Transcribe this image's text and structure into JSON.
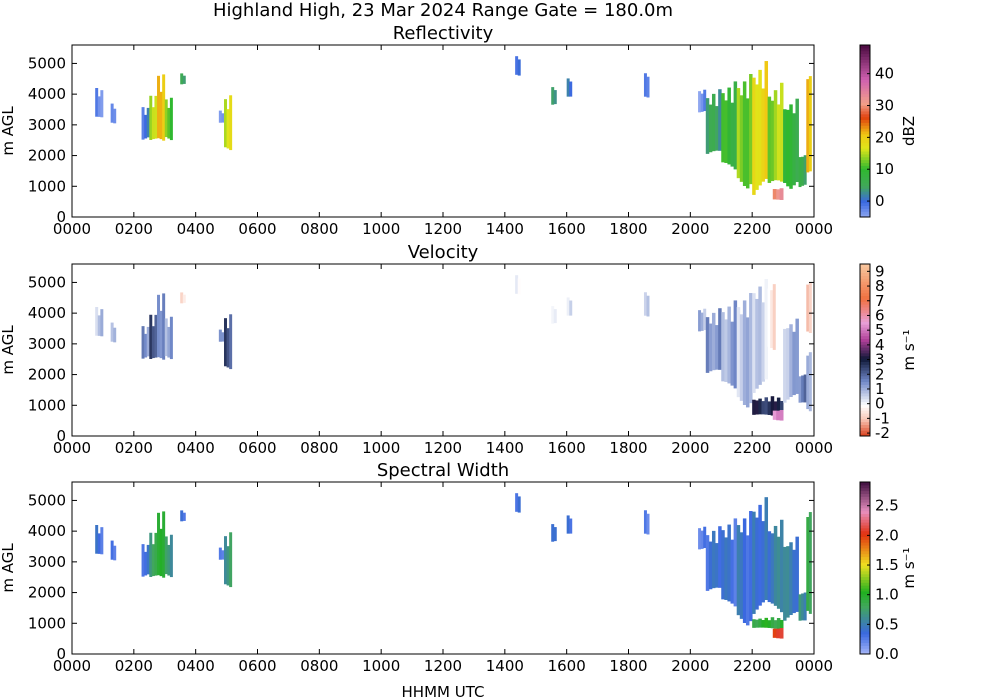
{
  "figure": {
    "suptitle": "Highland High, 23 Mar 2024 Range Gate = 180.0m",
    "xlabel": "HHMM UTC"
  },
  "chart_data": [
    {
      "type": "heatmap",
      "title": "Reflectivity",
      "ylabel": "m AGL",
      "xlim_hours": [
        0,
        24
      ],
      "ylim": [
        0,
        5600
      ],
      "x_ticks": [
        "0000",
        "0200",
        "0400",
        "0600",
        "0800",
        "1000",
        "1200",
        "1400",
        "1600",
        "1800",
        "2000",
        "2200",
        "0000"
      ],
      "y_ticks": [
        "0",
        "1000",
        "2000",
        "3000",
        "4000",
        "5000"
      ],
      "colorbar": {
        "label": "dBZ",
        "range": [
          -5,
          49
        ],
        "ticks": [
          "0",
          "10",
          "20",
          "30",
          "40"
        ],
        "tick_values": [
          0,
          10,
          20,
          30,
          40
        ]
      },
      "echoes": [
        {
          "start": "0045",
          "end": "0100",
          "base_m": 3100,
          "top_m": 4200,
          "value": -2
        },
        {
          "start": "0115",
          "end": "0125",
          "base_m": 3000,
          "top_m": 3700,
          "value": -1
        },
        {
          "start": "0215",
          "end": "0230",
          "base_m": 2500,
          "top_m": 3600,
          "value": 0
        },
        {
          "start": "0230",
          "end": "0245",
          "base_m": 2300,
          "top_m": 4000,
          "value": 14
        },
        {
          "start": "0245",
          "end": "0300",
          "base_m": 2200,
          "top_m": 4700,
          "value": 20
        },
        {
          "start": "0300",
          "end": "0315",
          "base_m": 2500,
          "top_m": 3900,
          "value": 12
        },
        {
          "start": "0330",
          "end": "0340",
          "base_m": 4300,
          "top_m": 4700,
          "value": 6
        },
        {
          "start": "0445",
          "end": "0455",
          "base_m": 3000,
          "top_m": 3500,
          "value": -2
        },
        {
          "start": "0455",
          "end": "0510",
          "base_m": 2000,
          "top_m": 4000,
          "value": 16
        },
        {
          "start": "1420",
          "end": "1430",
          "base_m": 4600,
          "top_m": 5300,
          "value": -2
        },
        {
          "start": "1530",
          "end": "1540",
          "base_m": 3600,
          "top_m": 4300,
          "value": 2
        },
        {
          "start": "1600",
          "end": "1610",
          "base_m": 3800,
          "top_m": 4600,
          "value": 1
        },
        {
          "start": "1830",
          "end": "1840",
          "base_m": 3800,
          "top_m": 4800,
          "value": 0
        },
        {
          "start": "2015",
          "end": "2030",
          "base_m": 3400,
          "top_m": 4200,
          "value": -3
        },
        {
          "start": "2030",
          "end": "2100",
          "base_m": 1800,
          "top_m": 4200,
          "value": 4
        },
        {
          "start": "2100",
          "end": "2130",
          "base_m": 1300,
          "top_m": 4500,
          "value": 9
        },
        {
          "start": "2130",
          "end": "2200",
          "base_m": 900,
          "top_m": 4800,
          "value": 13
        },
        {
          "start": "2200",
          "end": "2230",
          "base_m": 600,
          "top_m": 5300,
          "value": 19
        },
        {
          "start": "2230",
          "end": "2300",
          "base_m": 600,
          "top_m": 4600,
          "value": 14
        },
        {
          "start": "2240",
          "end": "2300",
          "base_m": 500,
          "top_m": 1000,
          "value": 31
        },
        {
          "start": "2300",
          "end": "2330",
          "base_m": 900,
          "top_m": 4100,
          "value": 8
        },
        {
          "start": "2330",
          "end": "2345",
          "base_m": 900,
          "top_m": 2200,
          "value": 5
        },
        {
          "start": "2345",
          "end": "2355",
          "base_m": 800,
          "top_m": 5400,
          "value": 21
        }
      ]
    },
    {
      "type": "heatmap",
      "title": "Velocity",
      "ylabel": "m AGL",
      "xlim_hours": [
        0,
        24
      ],
      "ylim": [
        0,
        5600
      ],
      "x_ticks": [
        "0000",
        "0200",
        "0400",
        "0600",
        "0800",
        "1000",
        "1200",
        "1400",
        "1600",
        "1800",
        "2000",
        "2200",
        "0000"
      ],
      "y_ticks": [
        "0",
        "1000",
        "2000",
        "3000",
        "4000",
        "5000"
      ],
      "colorbar": {
        "label": "m s⁻¹",
        "range": [
          -2.2,
          9.5
        ],
        "ticks": [
          "-2",
          "-1",
          "0",
          "1",
          "2",
          "3",
          "4",
          "5",
          "6",
          "7",
          "8",
          "9"
        ],
        "tick_values": [
          -2,
          -1,
          0,
          1,
          2,
          3,
          4,
          5,
          6,
          7,
          8,
          9
        ]
      },
      "echoes": [
        {
          "start": "0045",
          "end": "0100",
          "base_m": 3100,
          "top_m": 4200,
          "value": 0.6
        },
        {
          "start": "0115",
          "end": "0125",
          "base_m": 3000,
          "top_m": 3700,
          "value": 0.5
        },
        {
          "start": "0215",
          "end": "0230",
          "base_m": 2500,
          "top_m": 3600,
          "value": 1.3
        },
        {
          "start": "0230",
          "end": "0245",
          "base_m": 2300,
          "top_m": 4000,
          "value": 2.5
        },
        {
          "start": "0245",
          "end": "0300",
          "base_m": 2200,
          "top_m": 4700,
          "value": 1.8
        },
        {
          "start": "0300",
          "end": "0315",
          "base_m": 2500,
          "top_m": 3900,
          "value": 1.2
        },
        {
          "start": "0330",
          "end": "0340",
          "base_m": 4300,
          "top_m": 4700,
          "value": -0.8
        },
        {
          "start": "0445",
          "end": "0455",
          "base_m": 3000,
          "top_m": 3500,
          "value": 1.0
        },
        {
          "start": "0455",
          "end": "0510",
          "base_m": 2000,
          "top_m": 4000,
          "value": 2.3
        },
        {
          "start": "1420",
          "end": "1430",
          "base_m": 4600,
          "top_m": 5300,
          "value": 0.3
        },
        {
          "start": "1530",
          "end": "1540",
          "base_m": 3600,
          "top_m": 4300,
          "value": 0.5
        },
        {
          "start": "1600",
          "end": "1610",
          "base_m": 3800,
          "top_m": 4600,
          "value": 0.4
        },
        {
          "start": "1830",
          "end": "1840",
          "base_m": 3800,
          "top_m": 4800,
          "value": 0.3
        },
        {
          "start": "2015",
          "end": "2030",
          "base_m": 3400,
          "top_m": 4200,
          "value": 0.8
        },
        {
          "start": "2030",
          "end": "2100",
          "base_m": 1800,
          "top_m": 4200,
          "value": 1.5
        },
        {
          "start": "2100",
          "end": "2130",
          "base_m": 1300,
          "top_m": 4500,
          "value": 1.1
        },
        {
          "start": "2130",
          "end": "2200",
          "base_m": 900,
          "top_m": 4800,
          "value": 0.7
        },
        {
          "start": "2200",
          "end": "2230",
          "base_m": 1300,
          "top_m": 5300,
          "value": 0.4
        },
        {
          "start": "2200",
          "end": "2300",
          "base_m": 600,
          "top_m": 1300,
          "value": 2.8
        },
        {
          "start": "2230",
          "end": "2245",
          "base_m": 2500,
          "top_m": 5300,
          "value": -0.5
        },
        {
          "start": "2240",
          "end": "2300",
          "base_m": 500,
          "top_m": 900,
          "value": 5.5
        },
        {
          "start": "2300",
          "end": "2330",
          "base_m": 900,
          "top_m": 4100,
          "value": 0.9
        },
        {
          "start": "2330",
          "end": "2345",
          "base_m": 900,
          "top_m": 2200,
          "value": 1.6
        },
        {
          "start": "2345",
          "end": "2355",
          "base_m": 3100,
          "top_m": 5400,
          "value": -1.3
        },
        {
          "start": "2345",
          "end": "2355",
          "base_m": 800,
          "top_m": 3100,
          "value": 0.6
        }
      ]
    },
    {
      "type": "heatmap",
      "title": "Spectral Width",
      "ylabel": "m AGL",
      "xlim_hours": [
        0,
        24
      ],
      "ylim": [
        0,
        5600
      ],
      "x_ticks": [
        "0000",
        "0200",
        "0400",
        "0600",
        "0800",
        "1000",
        "1200",
        "1400",
        "1600",
        "1800",
        "2000",
        "2200",
        "0000"
      ],
      "y_ticks": [
        "0",
        "1000",
        "2000",
        "3000",
        "4000",
        "5000"
      ],
      "colorbar": {
        "label": "m s⁻¹",
        "range": [
          0,
          2.9
        ],
        "ticks": [
          "0.0",
          "0.5",
          "1.0",
          "1.5",
          "2.0",
          "2.5"
        ],
        "tick_values": [
          0,
          0.5,
          1.0,
          1.5,
          2.0,
          2.5
        ]
      },
      "echoes": [
        {
          "start": "0045",
          "end": "0100",
          "base_m": 3100,
          "top_m": 4200,
          "value": 0.35
        },
        {
          "start": "0115",
          "end": "0125",
          "base_m": 3000,
          "top_m": 3700,
          "value": 0.35
        },
        {
          "start": "0215",
          "end": "0230",
          "base_m": 2500,
          "top_m": 3600,
          "value": 0.4
        },
        {
          "start": "0230",
          "end": "0245",
          "base_m": 2300,
          "top_m": 4000,
          "value": 0.75
        },
        {
          "start": "0245",
          "end": "0300",
          "base_m": 2200,
          "top_m": 4700,
          "value": 0.9
        },
        {
          "start": "0300",
          "end": "0315",
          "base_m": 2500,
          "top_m": 3900,
          "value": 0.65
        },
        {
          "start": "0330",
          "end": "0340",
          "base_m": 4300,
          "top_m": 4700,
          "value": 0.35
        },
        {
          "start": "0445",
          "end": "0455",
          "base_m": 3000,
          "top_m": 3500,
          "value": 0.35
        },
        {
          "start": "0455",
          "end": "0510",
          "base_m": 2000,
          "top_m": 4000,
          "value": 0.7
        },
        {
          "start": "1420",
          "end": "1430",
          "base_m": 4600,
          "top_m": 5300,
          "value": 0.3
        },
        {
          "start": "1530",
          "end": "1540",
          "base_m": 3600,
          "top_m": 4300,
          "value": 0.3
        },
        {
          "start": "1600",
          "end": "1610",
          "base_m": 3800,
          "top_m": 4600,
          "value": 0.3
        },
        {
          "start": "1830",
          "end": "1840",
          "base_m": 3800,
          "top_m": 4800,
          "value": 0.3
        },
        {
          "start": "2015",
          "end": "2030",
          "base_m": 3400,
          "top_m": 4200,
          "value": 0.3
        },
        {
          "start": "2030",
          "end": "2100",
          "base_m": 1800,
          "top_m": 4200,
          "value": 0.35
        },
        {
          "start": "2100",
          "end": "2130",
          "base_m": 1300,
          "top_m": 4500,
          "value": 0.35
        },
        {
          "start": "2130",
          "end": "2200",
          "base_m": 900,
          "top_m": 4800,
          "value": 0.4
        },
        {
          "start": "2200",
          "end": "2230",
          "base_m": 1200,
          "top_m": 5300,
          "value": 0.45
        },
        {
          "start": "2200",
          "end": "2300",
          "base_m": 800,
          "top_m": 1200,
          "value": 0.95
        },
        {
          "start": "2230",
          "end": "2300",
          "base_m": 1200,
          "top_m": 4600,
          "value": 0.5
        },
        {
          "start": "2240",
          "end": "2300",
          "base_m": 500,
          "top_m": 900,
          "value": 2.0
        },
        {
          "start": "2300",
          "end": "2330",
          "base_m": 900,
          "top_m": 4100,
          "value": 0.5
        },
        {
          "start": "2330",
          "end": "2345",
          "base_m": 900,
          "top_m": 2200,
          "value": 0.6
        },
        {
          "start": "2345",
          "end": "2355",
          "base_m": 800,
          "top_m": 5400,
          "value": 0.9
        }
      ]
    }
  ]
}
